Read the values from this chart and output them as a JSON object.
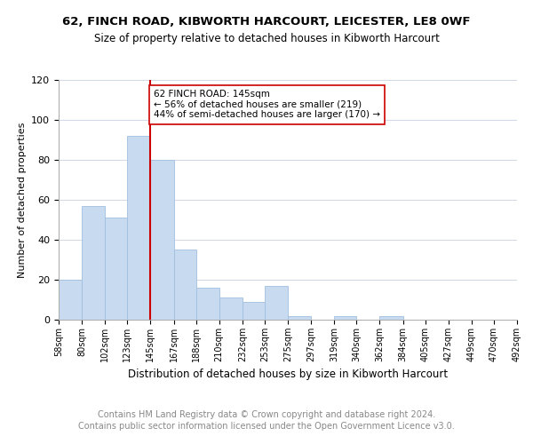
{
  "title": "62, FINCH ROAD, KIBWORTH HARCOURT, LEICESTER, LE8 0WF",
  "subtitle": "Size of property relative to detached houses in Kibworth Harcourt",
  "xlabel": "Distribution of detached houses by size in Kibworth Harcourt",
  "ylabel": "Number of detached properties",
  "bin_edges": [
    58,
    80,
    102,
    123,
    145,
    167,
    188,
    210,
    232,
    253,
    275,
    297,
    319,
    340,
    362,
    384,
    405,
    427,
    449,
    470,
    492
  ],
  "bin_labels": [
    "58sqm",
    "80sqm",
    "102sqm",
    "123sqm",
    "145sqm",
    "167sqm",
    "188sqm",
    "210sqm",
    "232sqm",
    "253sqm",
    "275sqm",
    "297sqm",
    "319sqm",
    "340sqm",
    "362sqm",
    "384sqm",
    "405sqm",
    "427sqm",
    "449sqm",
    "470sqm",
    "492sqm"
  ],
  "bar_heights": [
    20,
    57,
    51,
    92,
    80,
    35,
    16,
    11,
    9,
    17,
    2,
    0,
    2,
    0,
    2,
    0,
    0,
    0,
    0,
    0
  ],
  "bar_color": "#c8daf0",
  "bar_edgecolor": "#9fbfe0",
  "vline_x": 145,
  "vline_color": "#cc0000",
  "annotation_text": "62 FINCH ROAD: 145sqm\n← 56% of detached houses are smaller (219)\n44% of semi-detached houses are larger (170) →",
  "annotation_box_color": "#ffffff",
  "annotation_box_edgecolor": "#cc0000",
  "annotation_fontsize": 7.5,
  "ylim": [
    0,
    120
  ],
  "yticks": [
    0,
    20,
    40,
    60,
    80,
    100,
    120
  ],
  "footer_line1": "Contains HM Land Registry data © Crown copyright and database right 2024.",
  "footer_line2": "Contains public sector information licensed under the Open Government Licence v3.0.",
  "title_fontsize": 9.5,
  "subtitle_fontsize": 8.5,
  "xlabel_fontsize": 8.5,
  "ylabel_fontsize": 8,
  "footer_fontsize": 7,
  "background_color": "#ffffff",
  "grid_color": "#d0d8e8"
}
